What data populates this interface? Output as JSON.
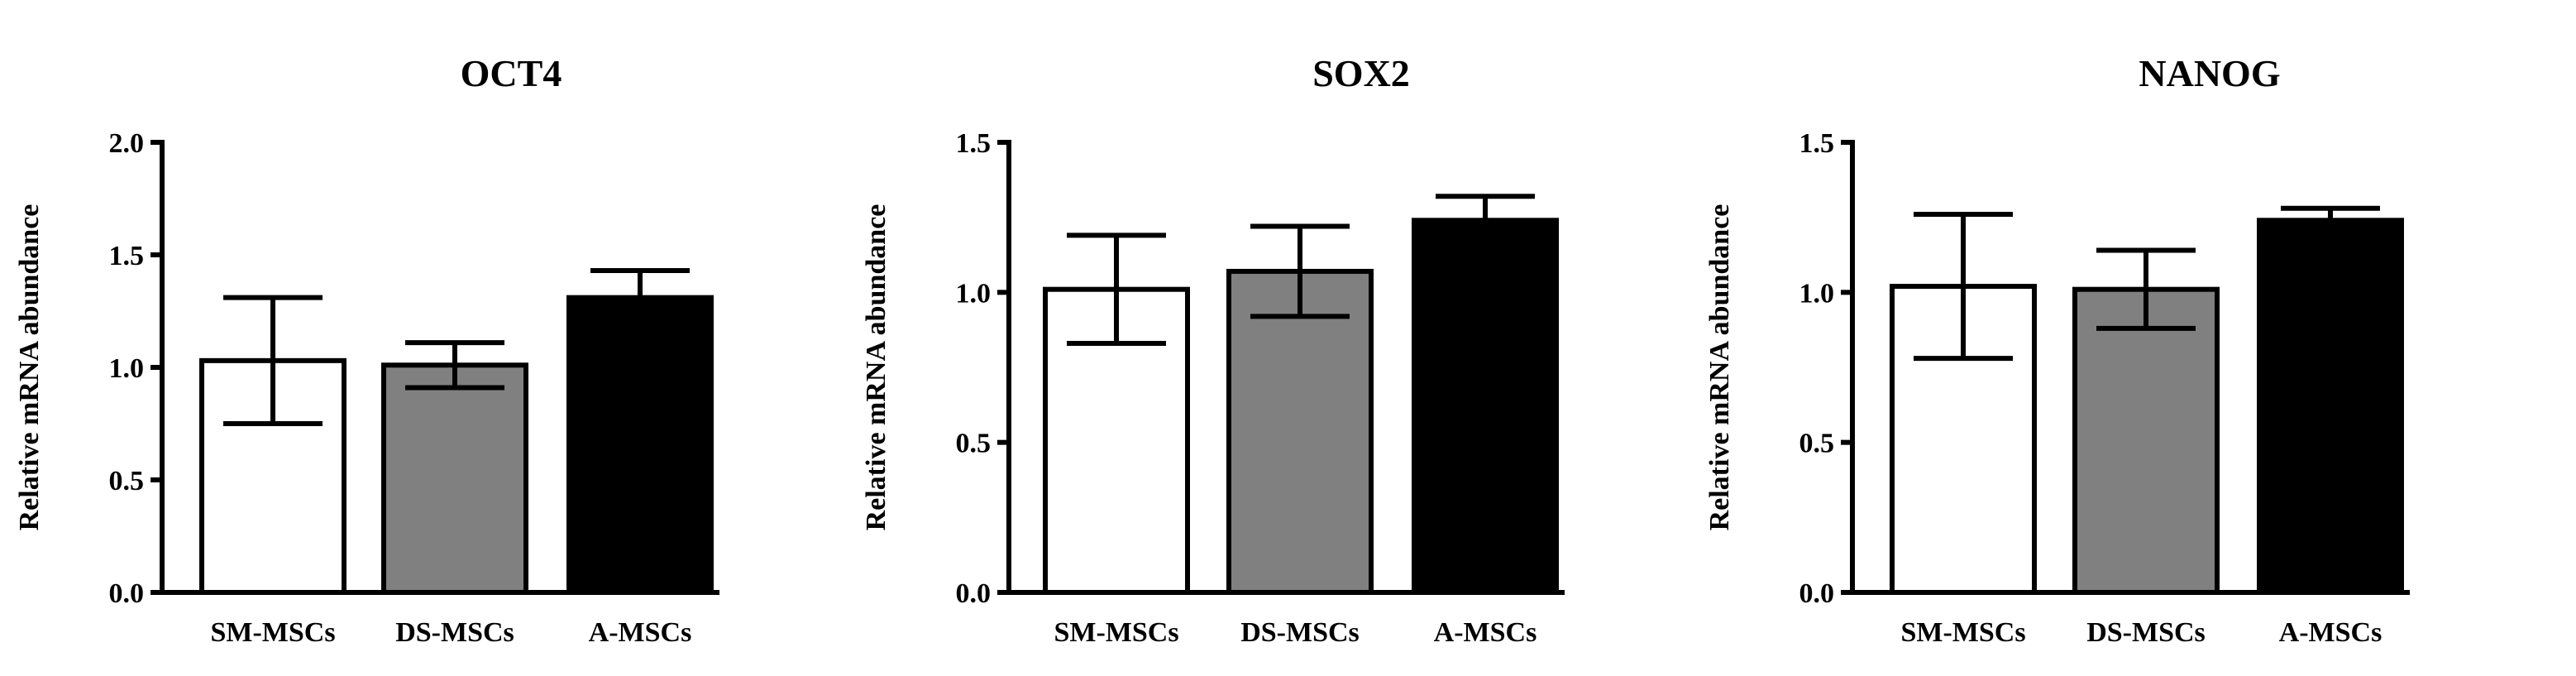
{
  "chart_data": [
    {
      "type": "bar",
      "title": "OCT4",
      "ylabel": "Relative mRNA abundance",
      "categories": [
        "SM-MSCs",
        "DS-MSCs",
        "A-MSCs"
      ],
      "values": [
        1.03,
        1.01,
        1.31
      ],
      "errors": [
        0.28,
        0.1,
        0.12
      ],
      "ylim": [
        0,
        2.0
      ],
      "yticks": [
        0.0,
        0.5,
        1.0,
        1.5,
        2.0
      ],
      "yticklabels": [
        "0.0",
        "0.5",
        "1.0",
        "1.5",
        "2.0"
      ],
      "grid": false,
      "colors": [
        "#ffffff",
        "#808080",
        "#000000"
      ]
    },
    {
      "type": "bar",
      "title": "SOX2",
      "ylabel": "Relative mRNA abundance",
      "categories": [
        "SM-MSCs",
        "DS-MSCs",
        "A-MSCs"
      ],
      "values": [
        1.01,
        1.07,
        1.24
      ],
      "errors": [
        0.18,
        0.15,
        0.08
      ],
      "ylim": [
        0,
        1.5
      ],
      "yticks": [
        0.0,
        0.5,
        1.0,
        1.5
      ],
      "yticklabels": [
        "0.0",
        "0.5",
        "1.0",
        "1.5"
      ],
      "grid": false,
      "colors": [
        "#ffffff",
        "#808080",
        "#000000"
      ]
    },
    {
      "type": "bar",
      "title": "NANOG",
      "ylabel": "Relative mRNA abundance",
      "categories": [
        "SM-MSCs",
        "DS-MSCs",
        "A-MSCs"
      ],
      "values": [
        1.02,
        1.01,
        1.24
      ],
      "errors": [
        0.24,
        0.13,
        0.04
      ],
      "ylim": [
        0,
        1.5
      ],
      "yticks": [
        0.0,
        0.5,
        1.0,
        1.5
      ],
      "yticklabels": [
        "0.0",
        "0.5",
        "1.0",
        "1.5"
      ],
      "grid": false,
      "colors": [
        "#ffffff",
        "#808080",
        "#000000"
      ]
    }
  ]
}
